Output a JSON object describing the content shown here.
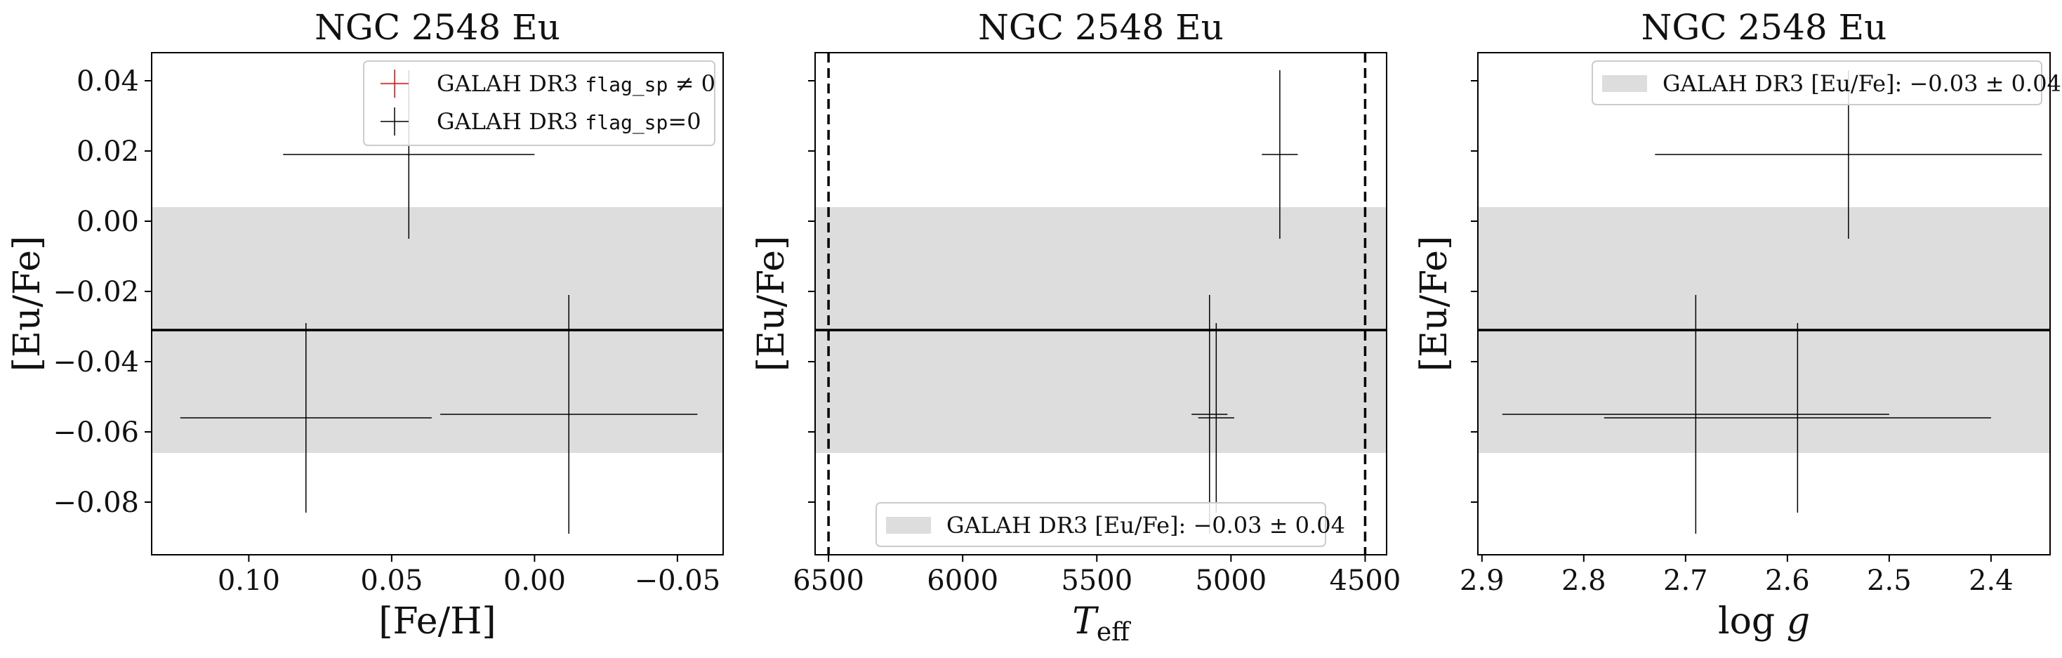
{
  "chart_data": [
    {
      "type": "scatter",
      "title": "NGC 2548 Eu",
      "xlabel": "[Fe/H]",
      "ylabel": "[Eu/Fe]",
      "xlim": [
        0.134,
        -0.066
      ],
      "ylim": [
        -0.095,
        0.048
      ],
      "xticks": [
        0.1,
        0.05,
        0.0,
        -0.05
      ],
      "xtick_labels": [
        "0.10",
        "0.05",
        "0.00",
        "−0.05"
      ],
      "yticks": [
        0.04,
        0.02,
        0.0,
        -0.02,
        -0.04,
        -0.06,
        -0.08
      ],
      "ytick_labels": [
        "0.04",
        "0.02",
        "0.00",
        "−0.02",
        "−0.04",
        "−0.06",
        "−0.08"
      ],
      "show_ytick_labels": true,
      "band": {
        "center": -0.031,
        "low": -0.066,
        "high": 0.004
      },
      "hline": -0.031,
      "vlines": [],
      "points": [
        {
          "x": 0.044,
          "y": 0.019,
          "xerr": 0.044,
          "yerr": 0.024
        },
        {
          "x": 0.08,
          "y": -0.056,
          "xerr": 0.044,
          "yerr": 0.027
        },
        {
          "x": -0.012,
          "y": -0.055,
          "xerr": 0.045,
          "yerr": 0.034
        }
      ],
      "legend": {
        "position": "upper right",
        "entries": [
          {
            "prefix": "GALAH DR3 ",
            "code": "flag_sp",
            "suffix": " ≠ 0",
            "color": "#ff0000",
            "marker": "cross"
          },
          {
            "prefix": "GALAH DR3 ",
            "code": "flag_sp",
            "suffix": "=0",
            "color": "#000000",
            "marker": "cross"
          }
        ]
      }
    },
    {
      "type": "scatter",
      "title": "NGC 2548 Eu",
      "xlabel": "T_eff",
      "ylabel": "[Eu/Fe]",
      "xlim": [
        6550,
        4420
      ],
      "ylim": [
        -0.095,
        0.048
      ],
      "xticks": [
        6500,
        6000,
        5500,
        5000,
        4500
      ],
      "xtick_labels": [
        "6500",
        "6000",
        "5500",
        "5000",
        "4500"
      ],
      "yticks": [
        0.04,
        0.02,
        0.0,
        -0.02,
        -0.04,
        -0.06,
        -0.08
      ],
      "ytick_labels": [],
      "show_ytick_labels": false,
      "band": {
        "center": -0.031,
        "low": -0.066,
        "high": 0.004
      },
      "hline": -0.031,
      "vlines": [
        6500,
        4500
      ],
      "points": [
        {
          "x": 4818,
          "y": 0.019,
          "xerr": 67,
          "yerr": 0.024
        },
        {
          "x": 5080,
          "y": -0.055,
          "xerr": 67,
          "yerr": 0.034
        },
        {
          "x": 5055,
          "y": -0.056,
          "xerr": 67,
          "yerr": 0.027
        }
      ],
      "legend": {
        "position": "lower center",
        "entries": [
          {
            "label": "GALAH DR3 [Eu/Fe]: −0.03 ± 0.04",
            "color": "#dddddd",
            "marker": "patch"
          }
        ]
      }
    },
    {
      "type": "scatter",
      "title": "NGC 2548 Eu",
      "xlabel": "log g",
      "ylabel": "[Eu/Fe]",
      "xlim": [
        2.904,
        2.342
      ],
      "ylim": [
        -0.095,
        0.048
      ],
      "xticks": [
        2.9,
        2.8,
        2.7,
        2.6,
        2.5,
        2.4
      ],
      "xtick_labels": [
        "2.9",
        "2.8",
        "2.7",
        "2.6",
        "2.5",
        "2.4"
      ],
      "yticks": [
        0.04,
        0.02,
        0.0,
        -0.02,
        -0.04,
        -0.06,
        -0.08
      ],
      "ytick_labels": [],
      "show_ytick_labels": false,
      "band": {
        "center": -0.031,
        "low": -0.066,
        "high": 0.004
      },
      "hline": -0.031,
      "vlines": [],
      "points": [
        {
          "x": 2.54,
          "y": 0.019,
          "xerr": 0.19,
          "yerr": 0.024
        },
        {
          "x": 2.69,
          "y": -0.055,
          "xerr": 0.19,
          "yerr": 0.034
        },
        {
          "x": 2.59,
          "y": -0.056,
          "xerr": 0.19,
          "yerr": 0.027
        }
      ],
      "legend": {
        "position": "upper right",
        "entries": [
          {
            "label": "GALAH DR3 [Eu/Fe]: −0.03 ± 0.04",
            "color": "#dddddd",
            "marker": "patch"
          }
        ]
      }
    }
  ]
}
